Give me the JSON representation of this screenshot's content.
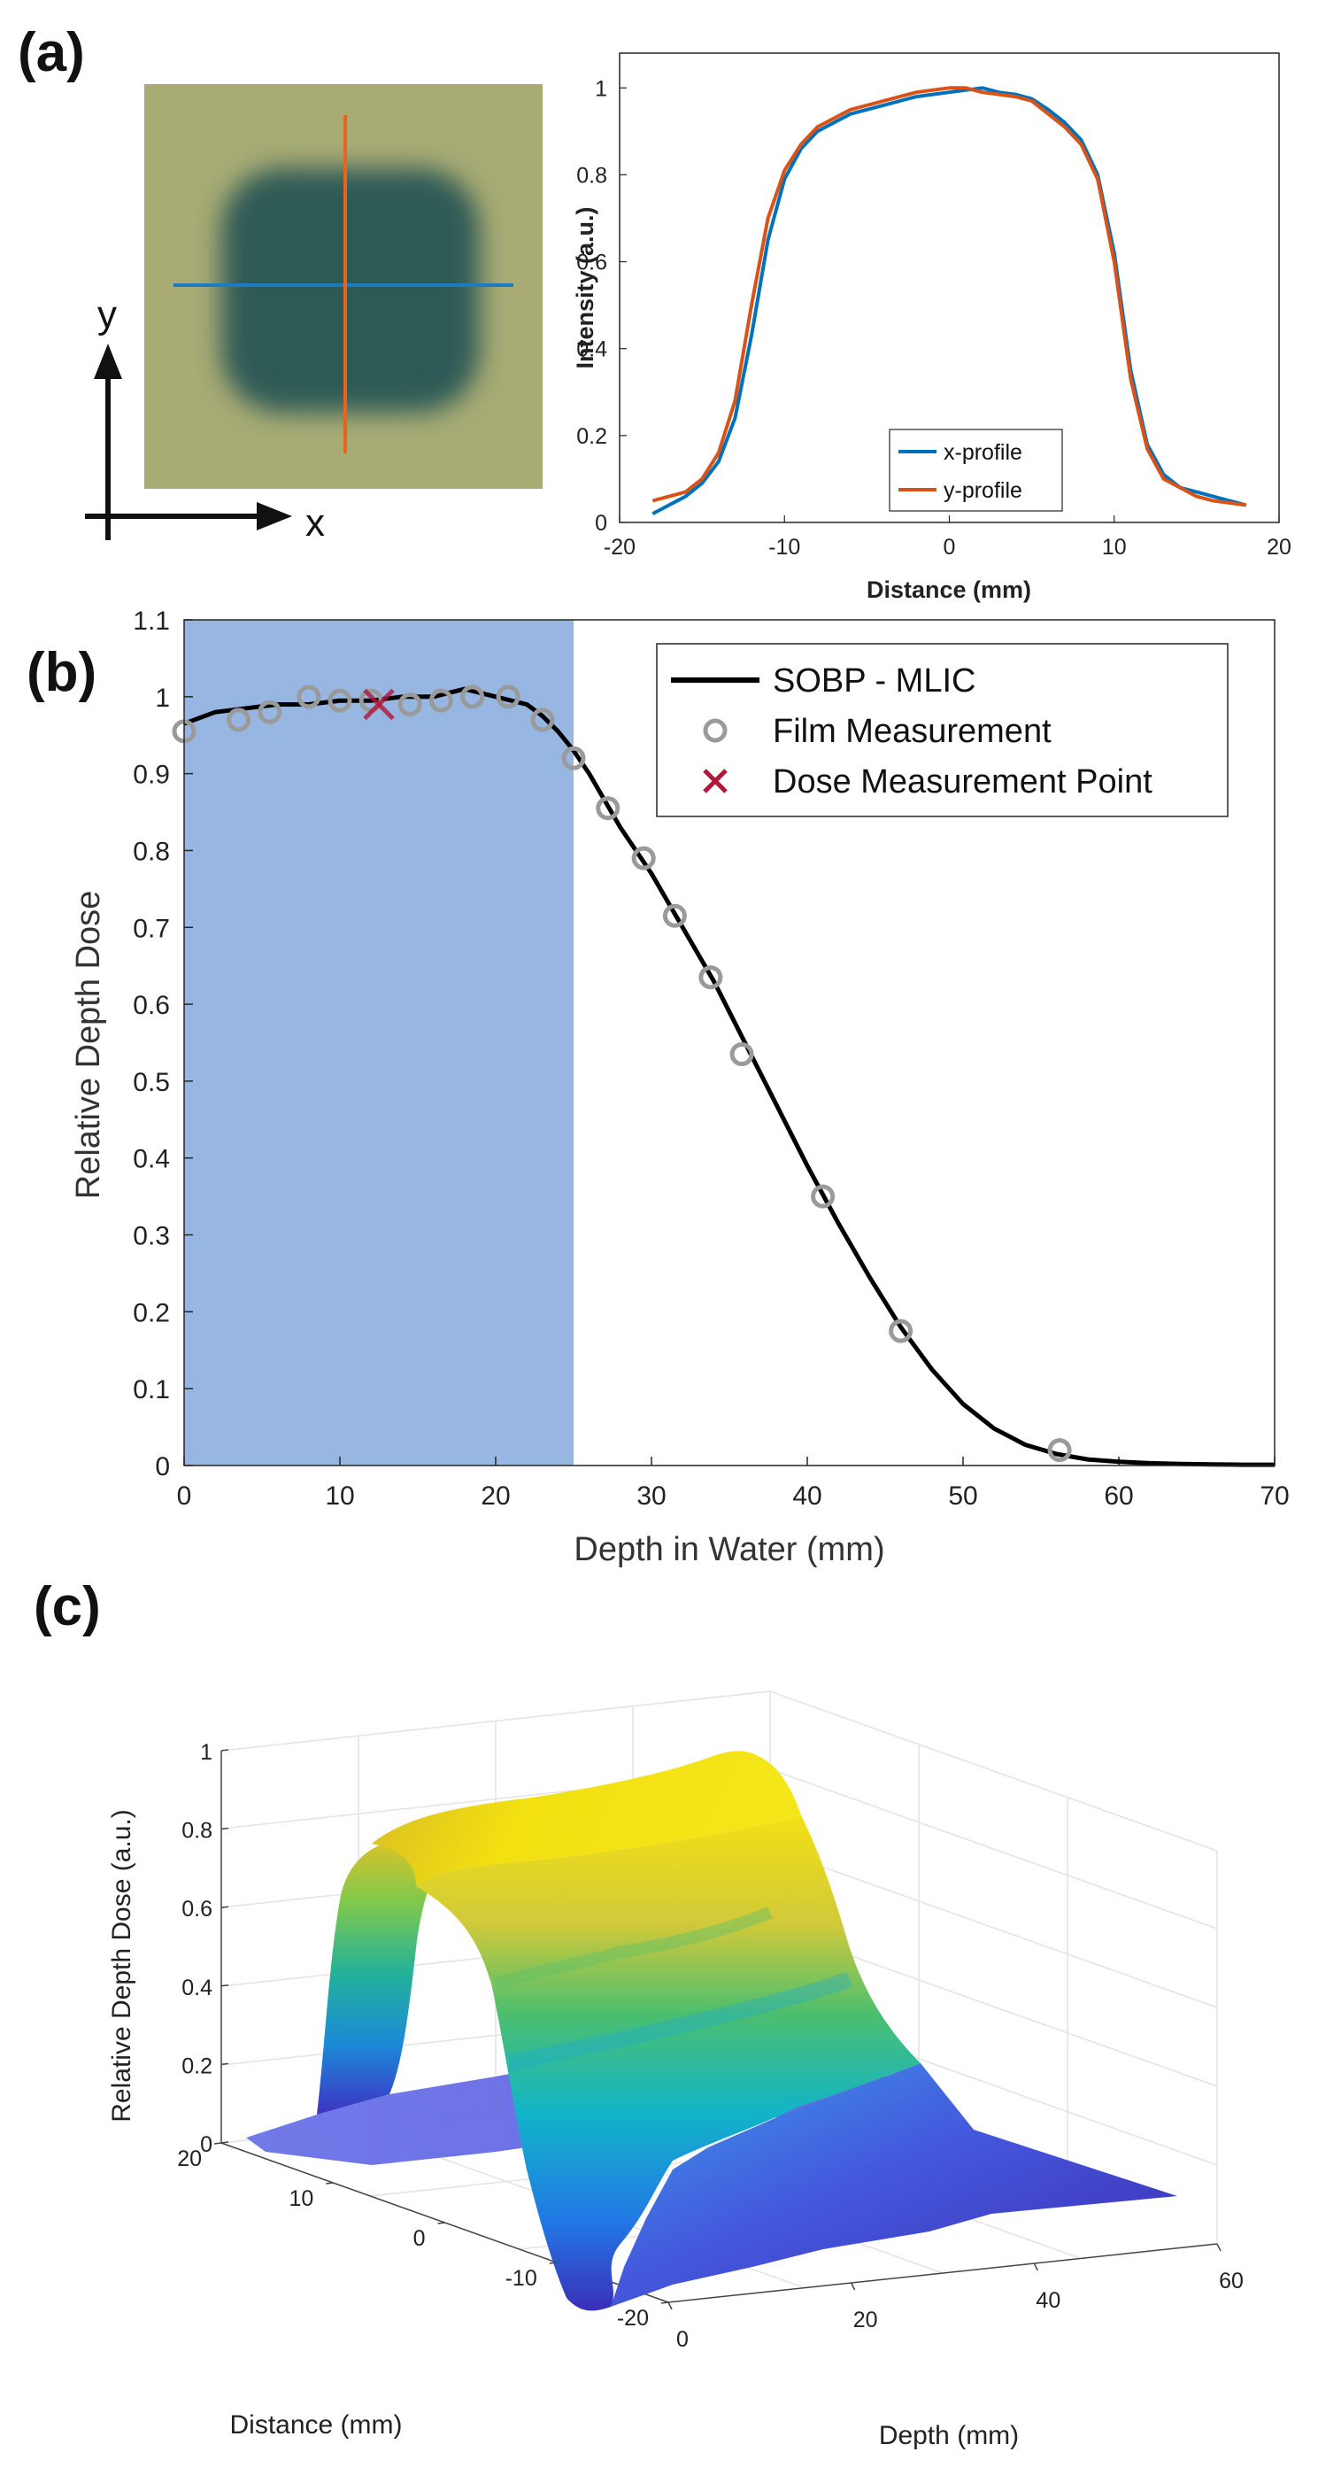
{
  "panels": {
    "a": {
      "label": "(a)"
    },
    "b": {
      "label": "(b)"
    },
    "c": {
      "label": "(c)"
    }
  },
  "film_image": {
    "axis_x_label": "x",
    "axis_y_label": "y",
    "film_color": "#a8ab74",
    "spot_color": "#2f5a57",
    "x_line_color": "#1f7bbf",
    "y_line_color": "#e8641e"
  },
  "colors": {
    "x_profile": "#0072bd",
    "y_profile": "#d95319",
    "sobp": "#000000",
    "film": "#9a9a9a",
    "dose_point": "#b0173a",
    "shade": "#97b7e2"
  },
  "chart_data": [
    {
      "id": "profiles",
      "type": "line",
      "xlabel": "Distance (mm)",
      "ylabel": "Intensity (a.u.)",
      "xlim": [
        -20,
        20
      ],
      "ylim": [
        0,
        1.08
      ],
      "xticks": [
        -20,
        -10,
        0,
        10,
        20
      ],
      "yticks": [
        0,
        0.2,
        0.4,
        0.6,
        0.8,
        1
      ],
      "legend_position": "bottom-center",
      "series": [
        {
          "name": "x-profile",
          "x": [
            -18,
            -17,
            -16,
            -15,
            -14,
            -13,
            -12,
            -11,
            -10,
            -9,
            -8,
            -7,
            -6,
            -5,
            -4,
            -3,
            -2,
            -1,
            0,
            1,
            2,
            3,
            4,
            5,
            6,
            7,
            8,
            9,
            10,
            11,
            12,
            13,
            14,
            15,
            16,
            17,
            18
          ],
          "y": [
            0.02,
            0.04,
            0.06,
            0.09,
            0.14,
            0.24,
            0.43,
            0.65,
            0.79,
            0.86,
            0.9,
            0.92,
            0.94,
            0.95,
            0.96,
            0.97,
            0.98,
            0.985,
            0.99,
            0.995,
            1.0,
            0.99,
            0.985,
            0.975,
            0.95,
            0.92,
            0.88,
            0.8,
            0.62,
            0.35,
            0.18,
            0.11,
            0.08,
            0.07,
            0.06,
            0.05,
            0.04
          ]
        },
        {
          "name": "y-profile",
          "x": [
            -18,
            -17,
            -16,
            -15,
            -14,
            -13,
            -12,
            -11,
            -10,
            -9,
            -8,
            -7,
            -6,
            -5,
            -4,
            -3,
            -2,
            -1,
            0,
            1,
            2,
            3,
            4,
            5,
            6,
            7,
            8,
            9,
            10,
            11,
            12,
            13,
            14,
            15,
            16,
            17,
            18
          ],
          "y": [
            0.05,
            0.06,
            0.07,
            0.1,
            0.16,
            0.28,
            0.5,
            0.7,
            0.81,
            0.87,
            0.91,
            0.93,
            0.95,
            0.96,
            0.97,
            0.98,
            0.99,
            0.995,
            1.0,
            1.0,
            0.99,
            0.985,
            0.98,
            0.97,
            0.94,
            0.91,
            0.87,
            0.79,
            0.6,
            0.33,
            0.17,
            0.1,
            0.08,
            0.06,
            0.05,
            0.045,
            0.04
          ]
        }
      ]
    },
    {
      "id": "depth_dose",
      "type": "line",
      "xlabel": "Depth in Water (mm)",
      "ylabel": "Relative Depth Dose",
      "xlim": [
        0,
        70
      ],
      "ylim": [
        0,
        1.1
      ],
      "xticks": [
        0,
        10,
        20,
        30,
        40,
        50,
        60,
        70
      ],
      "yticks": [
        0,
        0.1,
        0.2,
        0.3,
        0.4,
        0.5,
        0.6,
        0.7,
        0.8,
        0.9,
        1,
        1.1
      ],
      "shaded_region": [
        0,
        25
      ],
      "legend_position": "top-right",
      "series": [
        {
          "name": "SOBP - MLIC",
          "style": "line",
          "x": [
            0,
            2,
            4,
            6,
            8,
            10,
            12,
            14,
            16,
            18,
            20,
            22,
            23,
            24,
            25,
            26,
            28,
            30,
            32,
            34,
            36,
            38,
            40,
            42,
            44,
            46,
            48,
            50,
            52,
            54,
            56,
            58,
            60,
            62,
            64,
            66,
            68,
            70
          ],
          "y": [
            0.965,
            0.98,
            0.985,
            0.99,
            0.99,
            0.995,
            0.995,
            1.0,
            1.0,
            1.01,
            1.0,
            0.99,
            0.975,
            0.955,
            0.93,
            0.9,
            0.83,
            0.77,
            0.7,
            0.63,
            0.55,
            0.47,
            0.39,
            0.315,
            0.245,
            0.18,
            0.125,
            0.08,
            0.048,
            0.027,
            0.015,
            0.008,
            0.005,
            0.003,
            0.002,
            0.0015,
            0.001,
            0.001
          ]
        },
        {
          "name": "Film Measurement",
          "style": "scatter",
          "x": [
            0,
            3.5,
            5.5,
            8,
            10,
            12,
            14.5,
            16.5,
            18.5,
            20.8,
            23,
            25,
            27.2,
            29.5,
            31.5,
            33.8,
            35.8,
            41,
            46,
            56.2
          ],
          "y": [
            0.955,
            0.97,
            0.98,
            1.0,
            0.995,
            0.995,
            0.99,
            0.995,
            1.0,
            1.0,
            0.97,
            0.92,
            0.855,
            0.79,
            0.715,
            0.635,
            0.535,
            0.35,
            0.175,
            0.02
          ]
        },
        {
          "name": "Dose Measurement Point",
          "style": "marker-x",
          "x": [
            12.5
          ],
          "y": [
            0.99
          ]
        }
      ]
    },
    {
      "id": "surface_3d",
      "type": "surface",
      "zlabel": "Relative Depth Dose (a.u.)",
      "distance_label": "Distance (mm)",
      "depth_label": "Depth (mm)",
      "zticks": [
        0,
        0.2,
        0.4,
        0.6,
        0.8,
        1
      ],
      "distance_ticks": [
        20,
        10,
        0,
        -10,
        -20
      ],
      "depth_ticks": [
        0,
        20,
        40,
        60
      ],
      "zlim": [
        0,
        1
      ],
      "distance_range": [
        -20,
        20
      ],
      "depth_range": [
        0,
        60
      ],
      "colormap": "parula"
    }
  ]
}
